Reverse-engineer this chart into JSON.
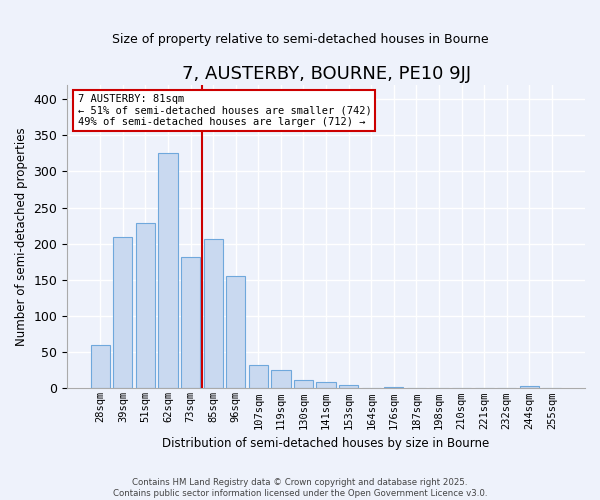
{
  "title": "7, AUSTERBY, BOURNE, PE10 9JJ",
  "subtitle": "Size of property relative to semi-detached houses in Bourne",
  "xlabel": "Distribution of semi-detached houses by size in Bourne",
  "ylabel": "Number of semi-detached properties",
  "categories": [
    "28sqm",
    "39sqm",
    "51sqm",
    "62sqm",
    "73sqm",
    "85sqm",
    "96sqm",
    "107sqm",
    "119sqm",
    "130sqm",
    "141sqm",
    "153sqm",
    "164sqm",
    "176sqm",
    "187sqm",
    "198sqm",
    "210sqm",
    "221sqm",
    "232sqm",
    "244sqm",
    "255sqm"
  ],
  "values": [
    60,
    209,
    229,
    325,
    181,
    207,
    155,
    33,
    25,
    12,
    9,
    5,
    1,
    2,
    0,
    1,
    0,
    0,
    0,
    3,
    0
  ],
  "bar_color": "#c9d9f0",
  "bar_edge_color": "#6fa8dc",
  "vline_x_pos": 4.5,
  "vline_color": "#cc0000",
  "annotation_title": "7 AUSTERBY: 81sqm",
  "annotation_line1": "← 51% of semi-detached houses are smaller (742)",
  "annotation_line2": "49% of semi-detached houses are larger (712) →",
  "annotation_box_edge_color": "#cc0000",
  "ylim": [
    0,
    420
  ],
  "yticks": [
    0,
    50,
    100,
    150,
    200,
    250,
    300,
    350,
    400
  ],
  "footer_line1": "Contains HM Land Registry data © Crown copyright and database right 2025.",
  "footer_line2": "Contains public sector information licensed under the Open Government Licence v3.0.",
  "bg_color": "#eef2fb",
  "plot_bg_color": "#eef2fb",
  "grid_color": "#ffffff"
}
